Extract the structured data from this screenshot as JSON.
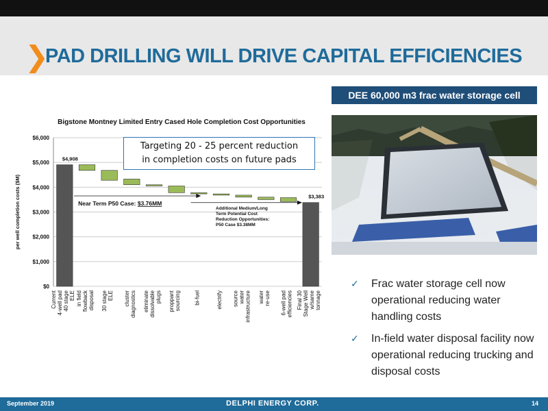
{
  "title": "PAD DRILLING WILL DRIVE CAPITAL EFFICIENCIES",
  "callout": {
    "line1": "Targeting 20 - 25 percent reduction",
    "line2": "in completion costs on future pads"
  },
  "photo": {
    "title": "DEE 60,000 m3 frac water storage cell"
  },
  "bullets": [
    "Frac water storage cell now operational reducing water handling costs",
    "In-field water disposal facility now operational reducing trucking and disposal costs"
  ],
  "footer": {
    "date": "September 2019",
    "company": "DELPHI ENERGY CORP.",
    "page": "14"
  },
  "chart_data": {
    "type": "bar",
    "title": "Bigstone Montney Limited Entry Cased Hole Completion Cost Opportunities",
    "ylabel": "per well completion costs ($M)",
    "ylim": [
      0,
      6000
    ],
    "yticks": [
      "$0",
      "$1,000",
      "$2,000",
      "$3,000",
      "$4,000",
      "$5,000",
      "$6,000"
    ],
    "categories": [
      "Current 4-well pad 40 stage ELE",
      "in field flowback disposal",
      "30 stage ELE",
      "cluster diagnostics",
      "eliminate dissolvable plugs",
      "proppant sourcing",
      "bi-fuel",
      "electrify",
      "source water infrastructure",
      "water re-use",
      "6-well pad efficiencies",
      "Final 30 Stage Well w/same tonnage"
    ],
    "waterfall": [
      {
        "kind": "total",
        "value": 4908,
        "label": "$4,908"
      },
      {
        "kind": "step",
        "from": 4908,
        "to": 4680
      },
      {
        "kind": "step",
        "from": 4680,
        "to": 4280
      },
      {
        "kind": "step",
        "from": 4330,
        "to": 4100
      },
      {
        "kind": "step",
        "from": 4100,
        "to": 4050
      },
      {
        "kind": "step",
        "from": 4050,
        "to": 3780
      },
      {
        "kind": "step",
        "from": 3780,
        "to": 3730
      },
      {
        "kind": "step",
        "from": 3730,
        "to": 3680
      },
      {
        "kind": "step",
        "from": 3680,
        "to": 3600
      },
      {
        "kind": "step",
        "from": 3600,
        "to": 3500
      },
      {
        "kind": "step",
        "from": 3580,
        "to": 3420
      },
      {
        "kind": "total",
        "value": 3383,
        "label": "$3,383"
      }
    ],
    "annotations": [
      {
        "text": "Near Term P50 Case: ",
        "highlight": "$3.76MM"
      },
      {
        "lines": [
          "Additional Medium/Long",
          "Term Potential Cost",
          "Reduction Opportunities:",
          "P50 Case $3.38MM"
        ]
      }
    ],
    "colors": {
      "total": "#555555",
      "step": "#9bbb59"
    }
  }
}
